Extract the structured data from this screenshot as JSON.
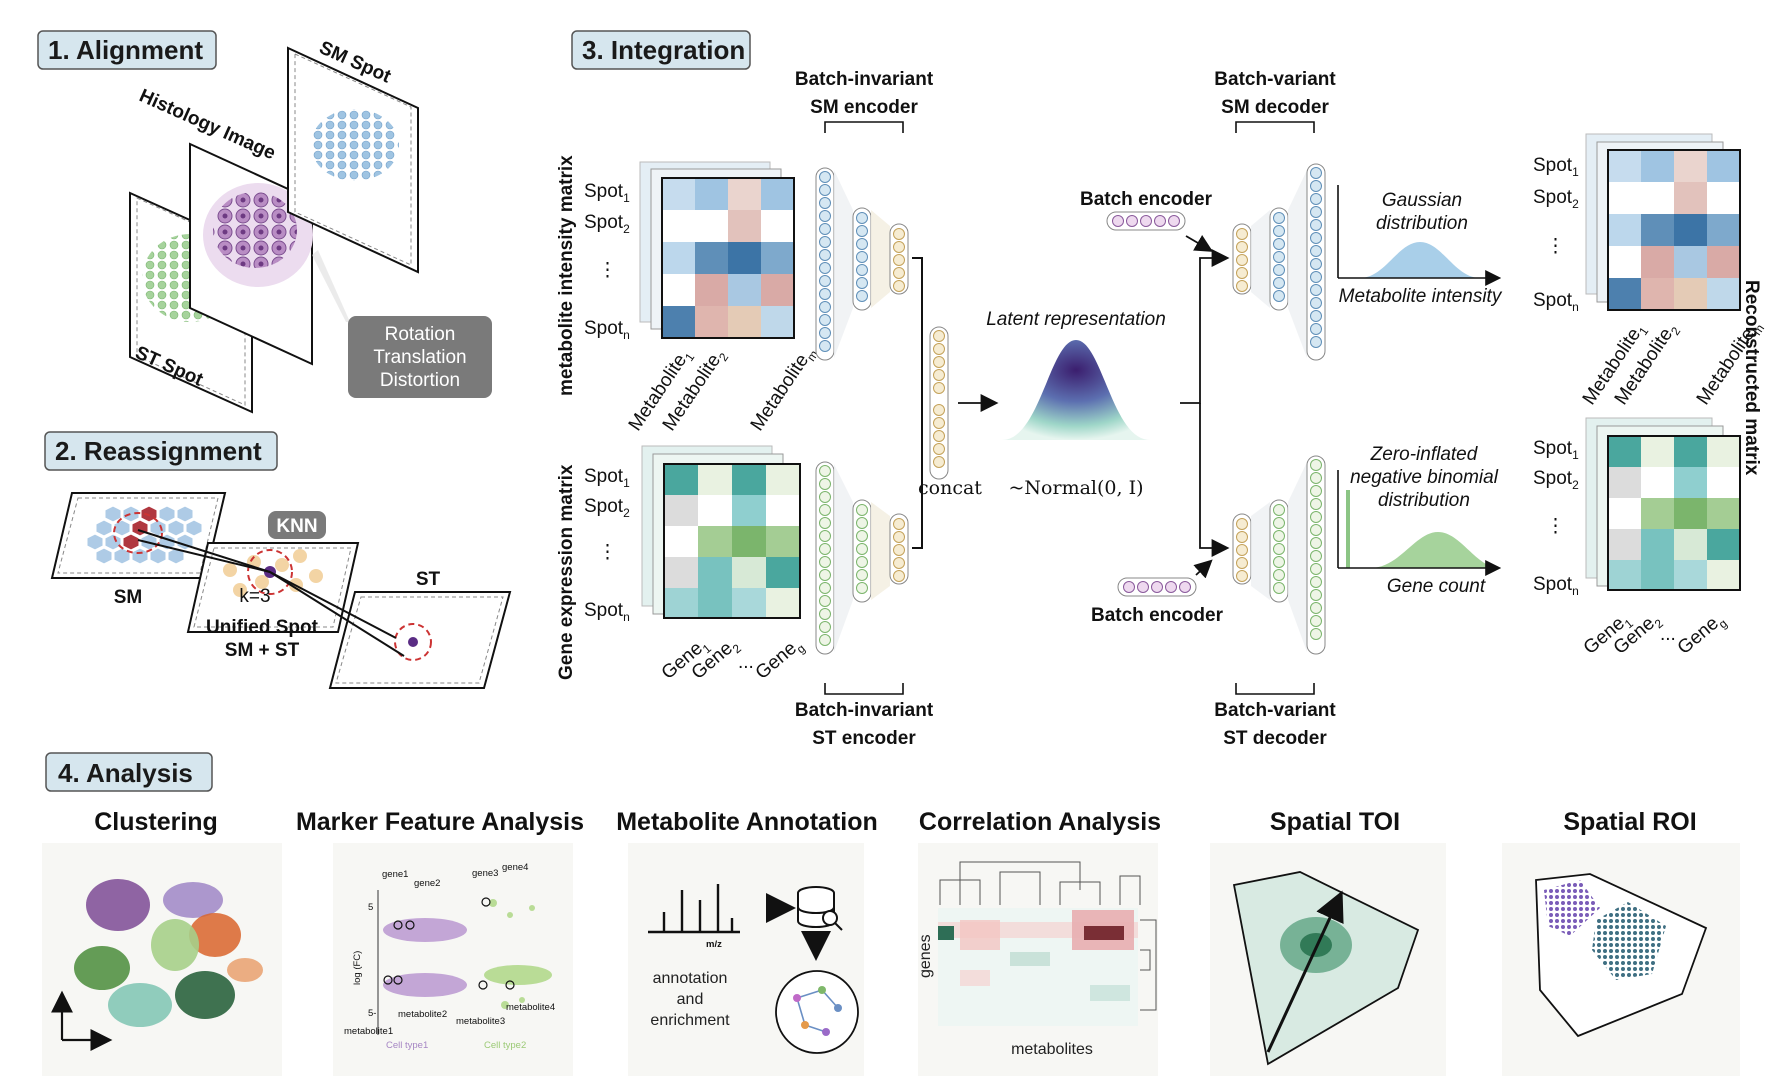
{
  "sections": {
    "alignment": "1. Alignment",
    "reassignment": "2. Reassignment",
    "integration": "3. Integration",
    "analysis": "4. Analysis"
  },
  "alignment": {
    "sm_spot": "SM Spot",
    "histology": "Histology Image",
    "st_spot": "ST Spot",
    "transform": [
      "Rotation",
      "Translation",
      "Distortion"
    ]
  },
  "reassignment": {
    "sm": "SM",
    "knn": "KNN",
    "k": "k=3",
    "unified1": "Unified Spot",
    "unified2": "SM + ST",
    "st": "ST"
  },
  "integration": {
    "sm_encoder": [
      "Batch-invariant",
      "SM encoder"
    ],
    "st_encoder": [
      "Batch-invariant",
      "ST encoder"
    ],
    "sm_decoder": [
      "Batch-variant",
      "SM decoder"
    ],
    "st_decoder": [
      "Batch-variant",
      "ST decoder"
    ],
    "batch_encoder": "Batch encoder",
    "latent": "Latent representation",
    "normal": "~Normal(0, I)",
    "concat": "concat",
    "metab_matrix": "metabolite intensity matrix",
    "gene_matrix": "Gene expression matrix",
    "recon_matrix": "Reconstructed matrix",
    "gaussian": [
      "Gaussian",
      "distribution"
    ],
    "metab_intensity": "Metabolite intensity",
    "zinb": [
      "Zero-inflated",
      "negative binomial",
      "distribution"
    ],
    "gene_count": "Gene count",
    "dots": "⋮",
    "hdots": "..."
  },
  "analysis": {
    "titles": [
      "Clustering",
      "Marker Feature Analysis",
      "Metabolite Annotation",
      "Correlation Analysis",
      "Spatial TOI",
      "Spatial ROI"
    ],
    "marker": {
      "gene1": "gene1",
      "gene2": "gene2",
      "gene3": "gene3",
      "gene4": "gene4",
      "met1": "metabolite1",
      "met2": "metabolite2",
      "met3": "metabolite3",
      "met4": "metabolite4",
      "ylab": "log (FC)",
      "tick_pos": "5",
      "tick_neg": "5-",
      "ct1": "Cell type1",
      "ct2": "Cell type2"
    },
    "annotation": {
      "mz": "m/z",
      "l1": "annotation",
      "l2": "and",
      "l3": "enrichment"
    },
    "correlation": {
      "genes": "genes",
      "metabolites": "metabolites"
    }
  },
  "colors": {
    "section_box": "#d6e6ee",
    "blue": "#7ea9cc",
    "green": "#9bc99b",
    "purple": "#8a5a9c",
    "dark_red": "#b0373f",
    "teal": "#4a9fa6"
  }
}
